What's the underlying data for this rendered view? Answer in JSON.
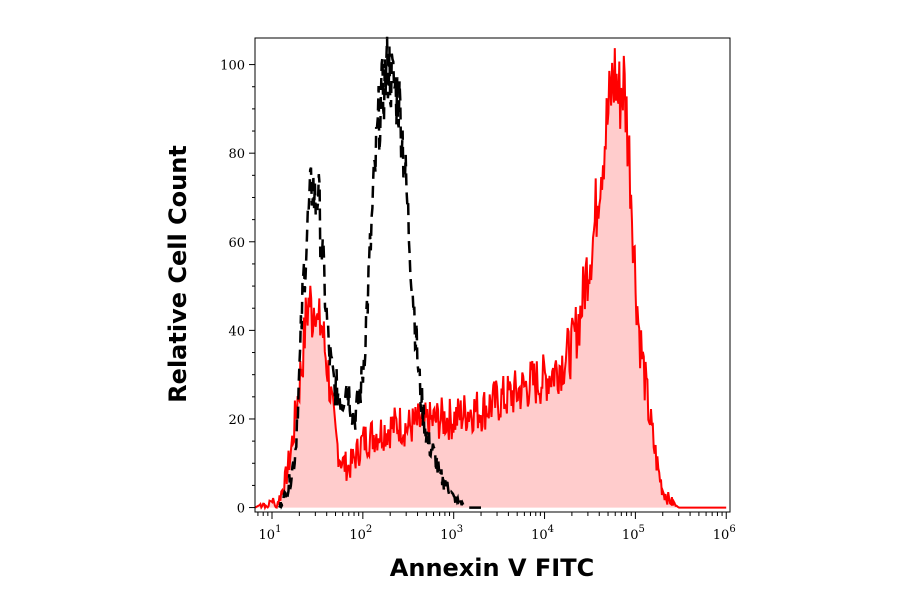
{
  "chart_data": {
    "type": "area",
    "xlabel": "Annexin V FITC",
    "ylabel": "Relative Cell Count",
    "x_scale": "log",
    "x_ticks": [
      {
        "value": 10,
        "base": "10",
        "exp": "1"
      },
      {
        "value": 100,
        "base": "10",
        "exp": "2"
      },
      {
        "value": 1000,
        "base": "10",
        "exp": "3"
      },
      {
        "value": 10000,
        "base": "10",
        "exp": "4"
      },
      {
        "value": 100000,
        "base": "10",
        "exp": "5"
      },
      {
        "value": 1000000,
        "base": "10",
        "exp": "6"
      }
    ],
    "y_ticks": [
      "0",
      "20",
      "40",
      "60",
      "80",
      "100"
    ],
    "xlim": [
      6.5,
      1100000
    ],
    "ylim": [
      -1,
      106
    ],
    "grid": false,
    "colors": {
      "treated_line": "#ff0000",
      "treated_fill": "#ffcccc",
      "control_line": "#000000"
    },
    "series": [
      {
        "style": "dashed-outline",
        "x": [
          12,
          15,
          18,
          20,
          22,
          25,
          28,
          30,
          32,
          35,
          38,
          42,
          46,
          50,
          55,
          60,
          65,
          70,
          80,
          90,
          100,
          115,
          130,
          150,
          170,
          190,
          210,
          230,
          250,
          270,
          300,
          340,
          380,
          420,
          470,
          520,
          580,
          650,
          700,
          800,
          900,
          1000,
          1200,
          1400,
          1700,
          2000
        ],
        "y": [
          0,
          4,
          12,
          30,
          50,
          65,
          74,
          68,
          72,
          60,
          50,
          36,
          30,
          27,
          26,
          24,
          29,
          26,
          20,
          24,
          30,
          50,
          70,
          88,
          95,
          100,
          96,
          94,
          92,
          85,
          72,
          55,
          40,
          28,
          20,
          15,
          13,
          10,
          7,
          6,
          4,
          2,
          1,
          0,
          0,
          0
        ]
      },
      {
        "style": "filled",
        "x": [
          6.5,
          8,
          9,
          10,
          11,
          12,
          14,
          16,
          18,
          20,
          22,
          24,
          26,
          28,
          30,
          32,
          35,
          38,
          42,
          46,
          50,
          55,
          60,
          70,
          80,
          90,
          100,
          120,
          150,
          200,
          250,
          300,
          400,
          500,
          700,
          1000,
          1500,
          2000,
          3000,
          5000,
          7000,
          10000,
          13000,
          16000,
          20000,
          25000,
          30000,
          35000,
          40000,
          45000,
          50000,
          55000,
          60000,
          65000,
          70000,
          75000,
          80000,
          85000,
          90000,
          100000,
          110000,
          125000,
          140000,
          160000,
          180000,
          200000,
          230000,
          260000,
          300000,
          350000,
          400000,
          500000,
          700000,
          1000000
        ],
        "y": [
          0,
          1,
          0,
          2,
          0,
          2,
          6,
          12,
          20,
          28,
          35,
          44,
          47,
          43,
          49,
          40,
          42,
          36,
          30,
          22,
          16,
          12,
          10,
          9,
          11,
          13,
          15,
          16,
          17,
          18,
          19,
          18,
          19,
          19,
          20,
          20,
          22,
          22,
          24,
          26,
          28,
          29,
          31,
          33,
          36,
          44,
          55,
          62,
          75,
          82,
          88,
          95,
          98,
          92,
          95,
          96,
          88,
          80,
          72,
          52,
          40,
          30,
          22,
          14,
          8,
          4,
          2,
          1,
          0,
          0,
          0,
          0,
          0,
          0
        ]
      }
    ]
  }
}
